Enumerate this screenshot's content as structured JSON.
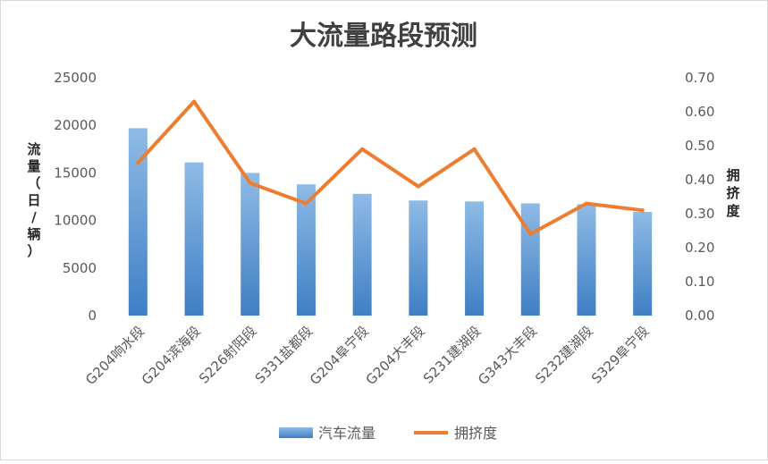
{
  "chart_data": {
    "type": "bar",
    "title": "大流量路段预测",
    "categories": [
      "G204响水段",
      "G204滨海段",
      "S226射阳段",
      "S331盐都段",
      "G204阜宁段",
      "G204大丰段",
      "S231建湖段",
      "G343大丰段",
      "S232建湖段",
      "S329阜宁段"
    ],
    "series": [
      {
        "name": "汽车流量",
        "type": "bar",
        "axis": "left",
        "color": "#5b9bd5",
        "values": [
          19700,
          16100,
          15000,
          13800,
          12800,
          12100,
          12000,
          11800,
          11700,
          10900
        ]
      },
      {
        "name": "拥挤度",
        "type": "line",
        "axis": "right",
        "color": "#ed7d31",
        "values": [
          0.45,
          0.63,
          0.39,
          0.33,
          0.49,
          0.38,
          0.49,
          0.24,
          0.33,
          0.31
        ]
      }
    ],
    "ylabel_left": [
      "流",
      "量",
      "（",
      "日",
      "/",
      "辆",
      "）"
    ],
    "ylabel_right": [
      "拥",
      "挤",
      "度"
    ],
    "ylim_left": [
      0,
      25000
    ],
    "ylim_right": [
      0,
      0.7
    ],
    "yticks_left": [
      "0",
      "5000",
      "10000",
      "15000",
      "20000",
      "25000"
    ],
    "yticks_right": [
      "0.00",
      "0.10",
      "0.20",
      "0.30",
      "0.40",
      "0.50",
      "0.60",
      "0.70"
    ],
    "grid": false,
    "legend_position": "bottom"
  }
}
